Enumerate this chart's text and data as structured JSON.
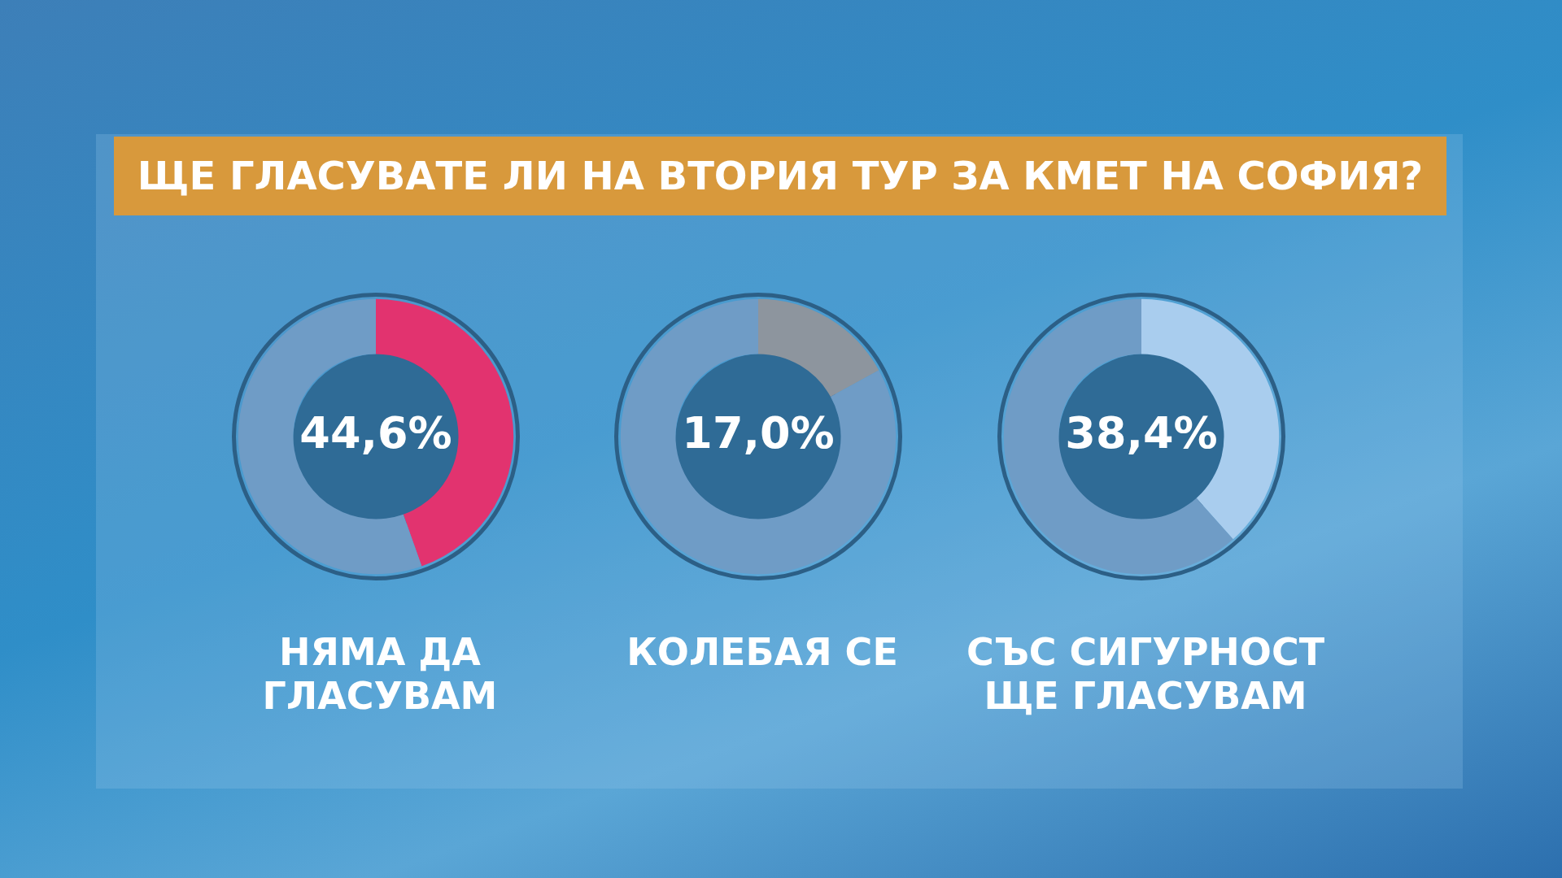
{
  "chart_data": [
    {
      "type": "other",
      "title": "ЩЕ ГЛАСУВАТЕ ЛИ НА ВТОРИЯ ТУР ЗА КМЕТ НА СОФИЯ?"
    },
    {
      "type": "donut",
      "title": "НЯМА ДА ГЛАСУВАМ",
      "categories": [
        null,
        null
      ],
      "values": [
        44.6,
        55.4
      ],
      "colors": [
        "#e2336f",
        "#6f9cc6"
      ],
      "value_labels": [
        "44,6%",
        null
      ]
    },
    {
      "type": "donut",
      "title": "КОЛЕБАЯ СЕ",
      "categories": [
        null,
        null
      ],
      "values": [
        17.0,
        83.0
      ],
      "colors": [
        "#8d959e",
        "#6f9cc6"
      ],
      "value_labels": [
        "17,0%",
        null
      ]
    },
    {
      "type": "donut",
      "title": "СЪС СИГУРНОСТ ЩЕ ГЛАСУВАМ",
      "categories": [
        null,
        null
      ],
      "values": [
        38.4,
        61.6
      ],
      "colors": [
        "#a9cdee",
        "#6f9cc6"
      ],
      "value_labels": [
        "38,4%",
        null
      ]
    }
  ]
}
